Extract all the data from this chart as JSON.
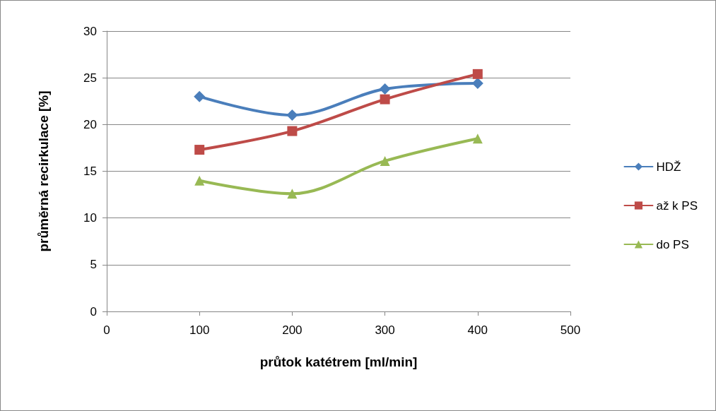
{
  "chart_data": {
    "type": "line",
    "xlabel": "průtok katétrem [ml/min]",
    "ylabel": "průměrná recirkulace [%]",
    "x": [
      100,
      200,
      300,
      400
    ],
    "series": [
      {
        "name": "HDŽ",
        "color": "#4a7ebb",
        "marker": "diamond",
        "values": [
          23.0,
          21.0,
          23.8,
          24.4
        ]
      },
      {
        "name": "až k PS",
        "color": "#be4b48",
        "marker": "square",
        "values": [
          17.3,
          19.3,
          22.7,
          25.4
        ]
      },
      {
        "name": "do PS",
        "color": "#98b954",
        "marker": "triangle",
        "values": [
          14.0,
          12.6,
          16.1,
          18.5
        ]
      }
    ],
    "xlim": [
      0,
      500
    ],
    "xticks": [
      0,
      100,
      200,
      300,
      400,
      500
    ],
    "ylim": [
      0,
      30
    ],
    "yticks": [
      0,
      5,
      10,
      15,
      20,
      25,
      30
    ],
    "grid": "y",
    "legend": "right",
    "line_style": "solid"
  }
}
